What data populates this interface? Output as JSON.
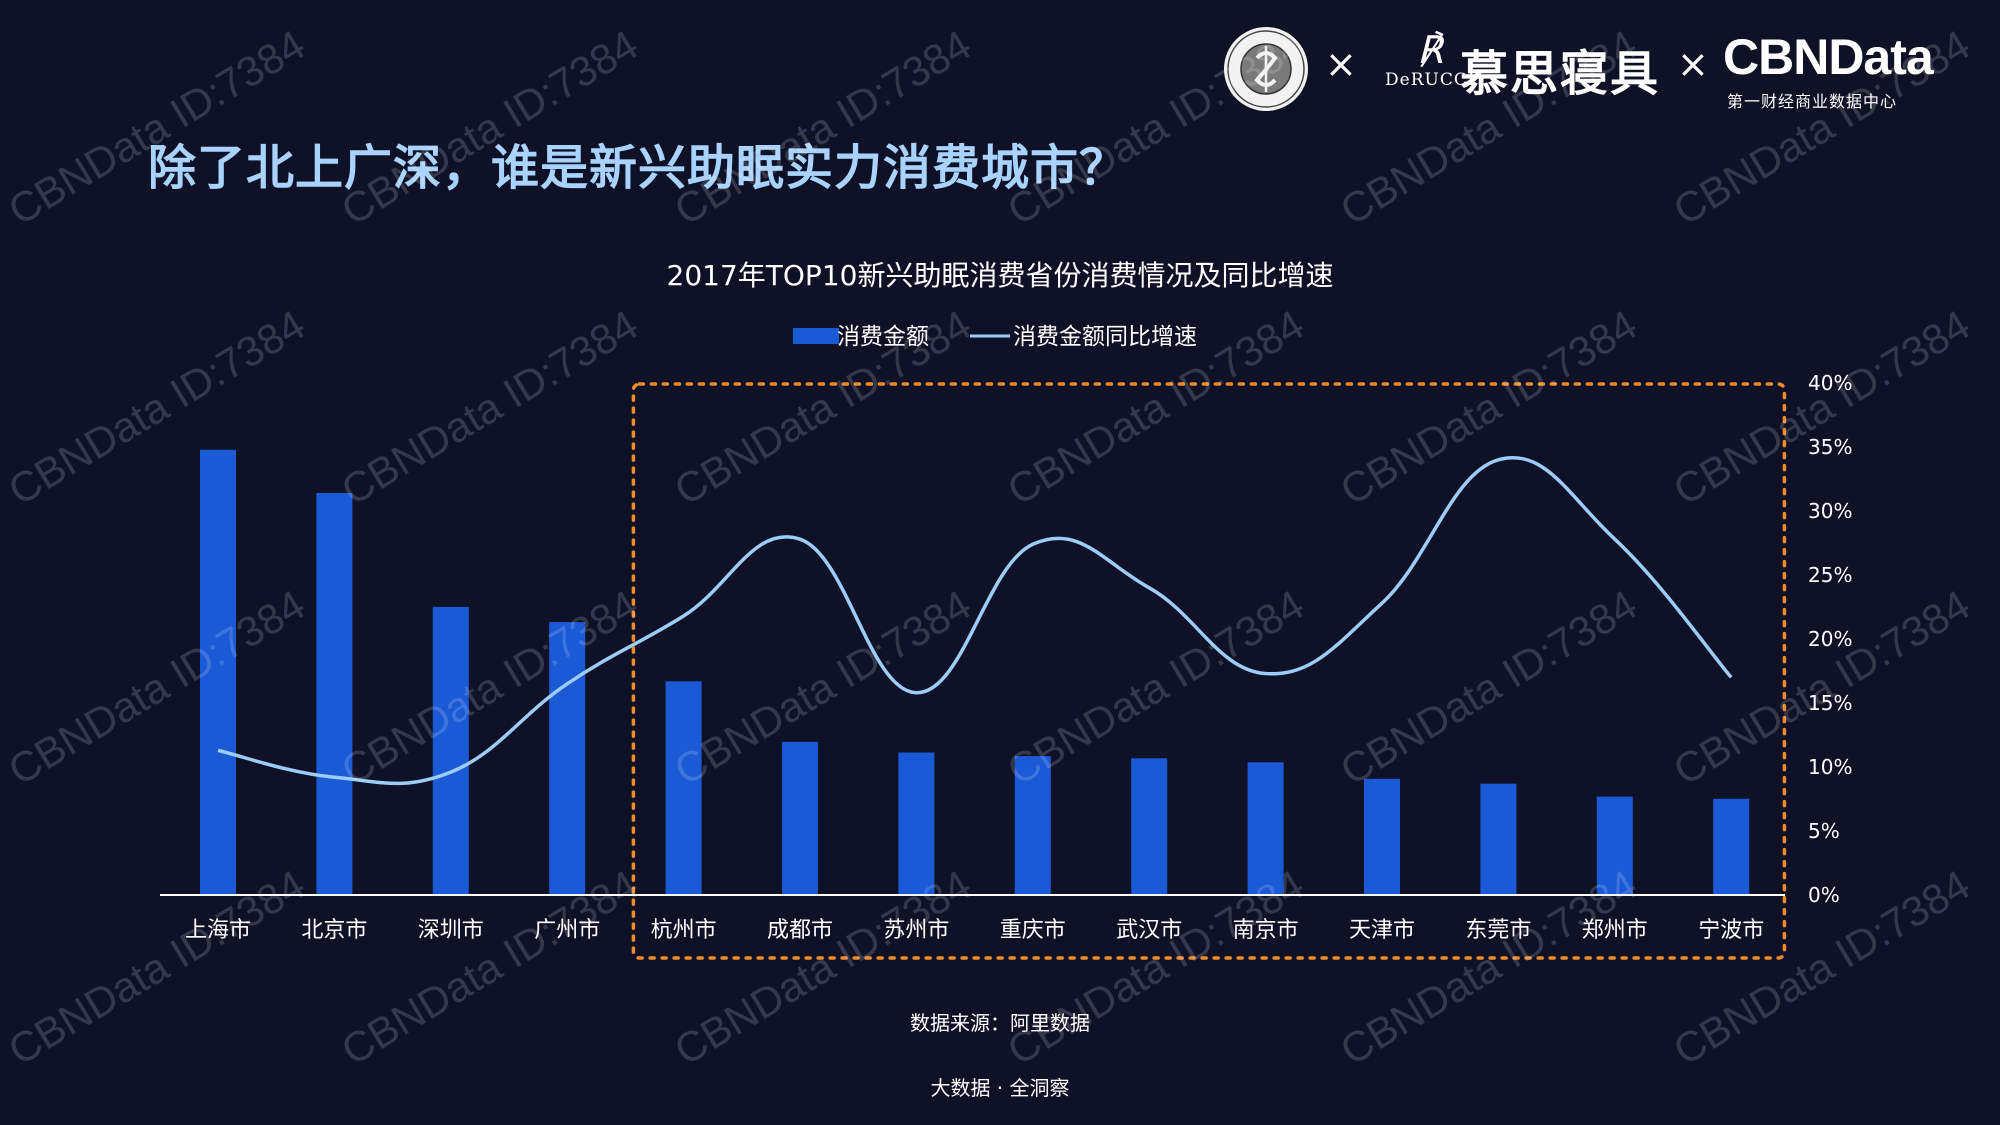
{
  "page": {
    "title": "除了北上广深，谁是新兴助眠实力消费城市？",
    "source": "数据来源：阿里数据",
    "credit": "大数据 · 全洞察",
    "watermark": "CBNData ID:7384"
  },
  "brands": {
    "separator": "×",
    "derucci_mark": "℟",
    "derucci": "DeRUCCI",
    "muse": "慕思寝具",
    "cbn": "CBNData",
    "cbn_sub": "第一财经商业数据中心"
  },
  "colors": {
    "background": "#0f1226",
    "bar": "#1a5ad6",
    "line": "#9ccdf8",
    "title": "#a9d3ff",
    "highlight_box": "#f08a2a"
  },
  "chart_data": {
    "type": "bar",
    "title": "2017年TOP10新兴助眠消费省份消费情况及同比增速",
    "legend_position": "top",
    "categories": [
      "上海市",
      "北京市",
      "深圳市",
      "广州市",
      "杭州市",
      "成都市",
      "苏州市",
      "重庆市",
      "武汉市",
      "南京市",
      "天津市",
      "东莞市",
      "郑州市",
      "宁波市"
    ],
    "series": [
      {
        "name": "消费金额",
        "type": "bar",
        "axis": "left",
        "values": [
          100,
          90.3,
          64.7,
          61.3,
          48,
          34.4,
          32,
          31.2,
          30.7,
          29.8,
          26.1,
          25,
          22.1,
          21.6
        ]
      },
      {
        "name": "消费金额同比增速",
        "type": "line",
        "axis": "right",
        "smooth": true,
        "values": [
          11.3,
          9.2,
          9.6,
          16.5,
          21.8,
          27.8,
          15.8,
          27.4,
          24,
          17.3,
          22.8,
          34,
          27.8,
          17
        ]
      }
    ],
    "y_left_hidden": true,
    "y_left_range": [
      0,
      115
    ],
    "y_right_range": [
      0,
      40
    ],
    "y_right_ticks": [
      "0%",
      "5%",
      "10%",
      "15%",
      "20%",
      "25%",
      "30%",
      "35%",
      "40%"
    ],
    "highlight_range": [
      "杭州市",
      "宁波市"
    ],
    "grid": false
  }
}
